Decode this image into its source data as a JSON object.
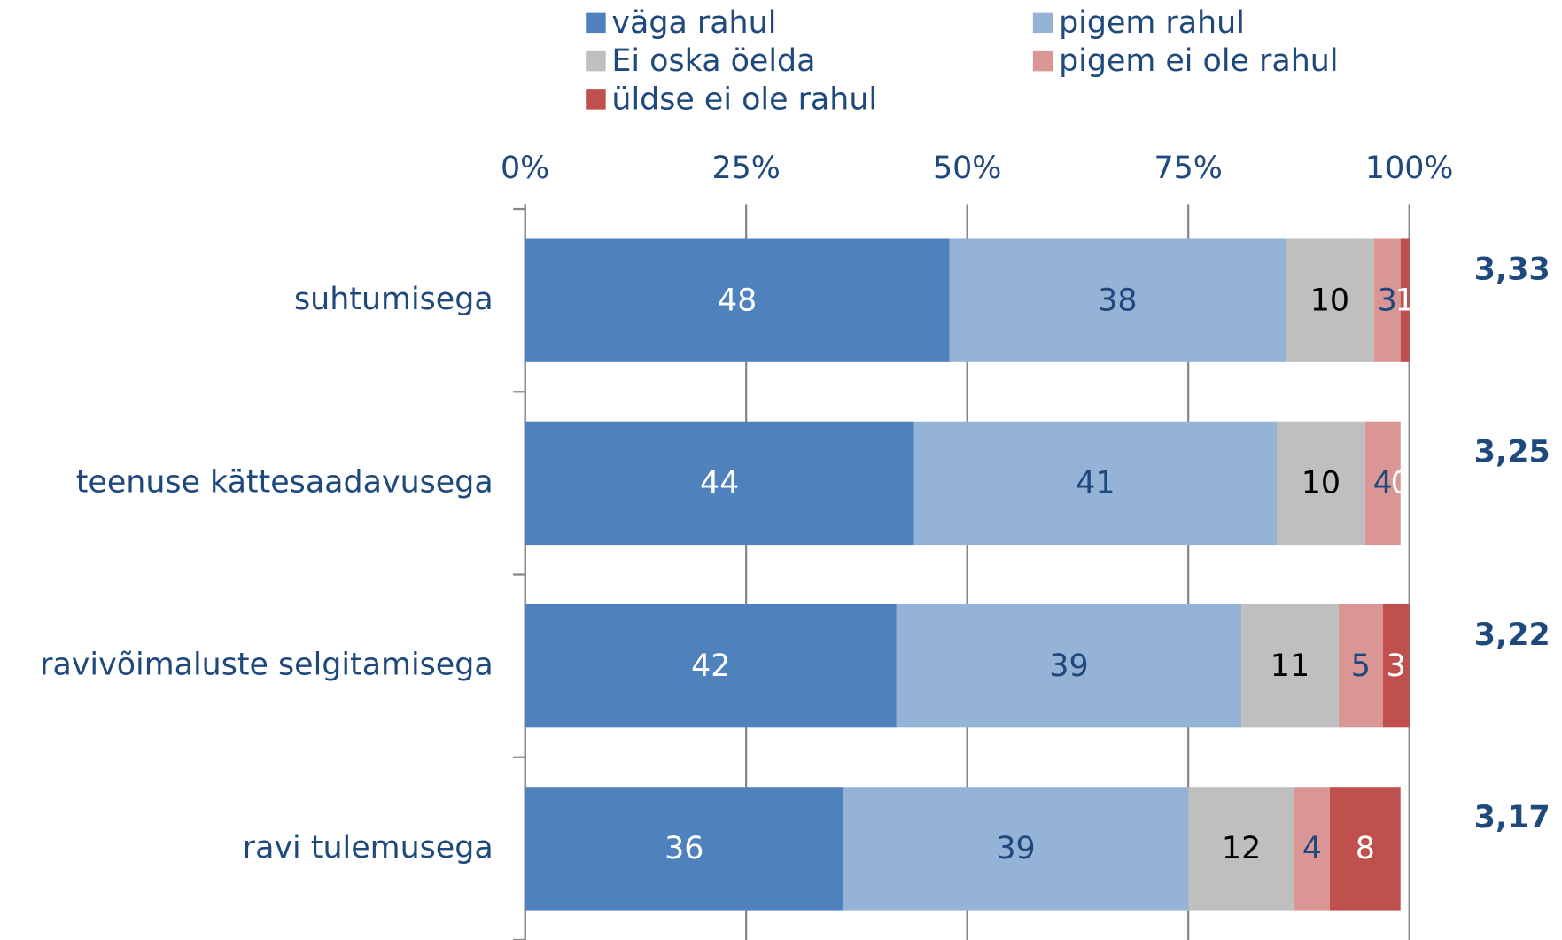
{
  "chart_data": {
    "type": "stacked_barh",
    "categories": [
      "suhtumisega",
      "teenuse kättesaadavusega",
      "ravivõimaluste selgitamisega",
      "ravi tulemusega"
    ],
    "series": [
      {
        "name": "väga rahul",
        "color": "#4f81bd",
        "label_color": "#ffffff",
        "values": [
          48,
          44,
          42,
          36
        ]
      },
      {
        "name": "pigem rahul",
        "color": "#95b3d7",
        "label_color": "#1f497d",
        "values": [
          38,
          41,
          39,
          39
        ]
      },
      {
        "name": "Ei oska öelda",
        "color": "#bfbfbf",
        "label_color": "#000000",
        "values": [
          10,
          10,
          11,
          12
        ]
      },
      {
        "name": "pigem ei ole rahul",
        "color": "#d99694",
        "label_color": "#1f497d",
        "values": [
          3,
          4,
          5,
          4
        ]
      },
      {
        "name": "üldse ei ole rahul",
        "color": "#c0504d",
        "label_color": "#ffffff",
        "values": [
          1,
          0,
          3,
          8
        ]
      }
    ],
    "annotations": [
      "3,33",
      "3,25",
      "3,22",
      "3,17"
    ],
    "xlim": [
      0,
      100
    ],
    "xticks": [
      {
        "value": 0,
        "label": "0%"
      },
      {
        "value": 25,
        "label": "25%"
      },
      {
        "value": 50,
        "label": "50%"
      },
      {
        "value": 75,
        "label": "75%"
      },
      {
        "value": 100,
        "label": "100%"
      }
    ],
    "grid": true,
    "legend": "top"
  }
}
